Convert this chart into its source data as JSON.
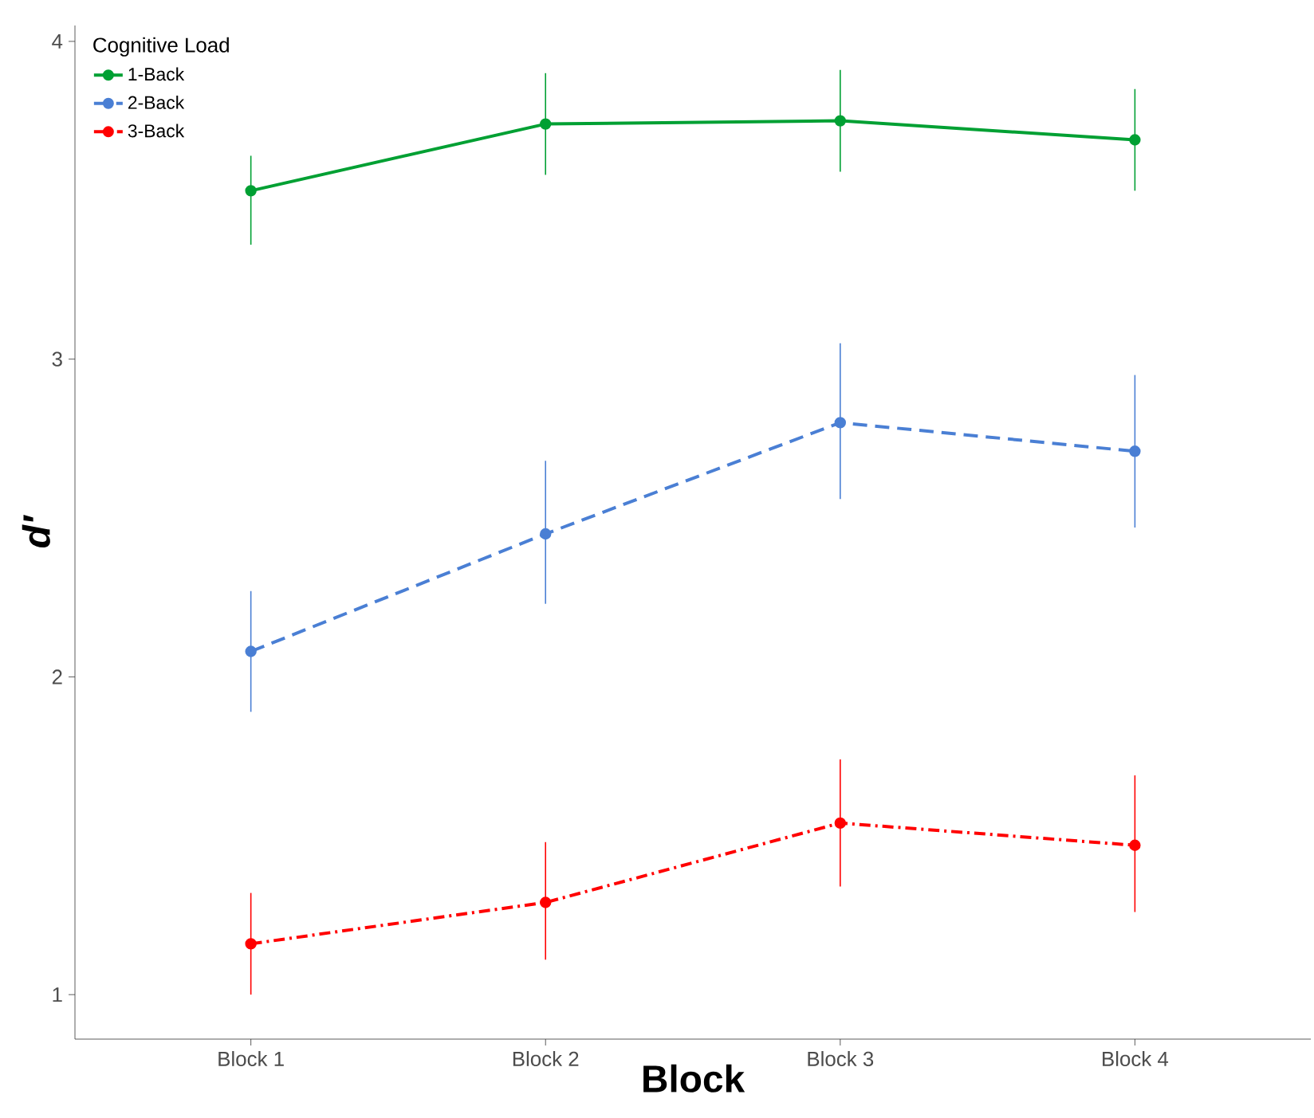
{
  "chart_data": {
    "type": "line",
    "xlabel": "Block",
    "ylabel": "d′",
    "legend_title": "Cognitive Load",
    "categories": [
      "Block 1",
      "Block 2",
      "Block 3",
      "Block 4"
    ],
    "series": [
      {
        "name": "1-Back",
        "color": "#00a033",
        "line_style": "solid",
        "values": [
          3.53,
          3.74,
          3.75,
          3.69
        ],
        "errors": [
          [
            3.36,
            3.64
          ],
          [
            3.58,
            3.9
          ],
          [
            3.59,
            3.91
          ],
          [
            3.53,
            3.85
          ]
        ]
      },
      {
        "name": "2-Back",
        "color": "#4a7fd4",
        "line_style": "dashed",
        "values": [
          2.08,
          2.45,
          2.8,
          2.71
        ],
        "errors": [
          [
            1.89,
            2.27
          ],
          [
            2.23,
            2.68
          ],
          [
            2.56,
            3.05
          ],
          [
            2.47,
            2.95
          ]
        ]
      },
      {
        "name": "3-Back",
        "color": "#ff0000",
        "line_style": "dashdot",
        "values": [
          1.16,
          1.29,
          1.54,
          1.47
        ],
        "errors": [
          [
            1.0,
            1.32
          ],
          [
            1.11,
            1.48
          ],
          [
            1.34,
            1.74
          ],
          [
            1.26,
            1.69
          ]
        ]
      }
    ],
    "ylim": [
      0.86,
      4.05
    ],
    "yticks": [
      1,
      2,
      3,
      4
    ],
    "grid": false,
    "legend": "top left",
    "marker": "circle"
  }
}
